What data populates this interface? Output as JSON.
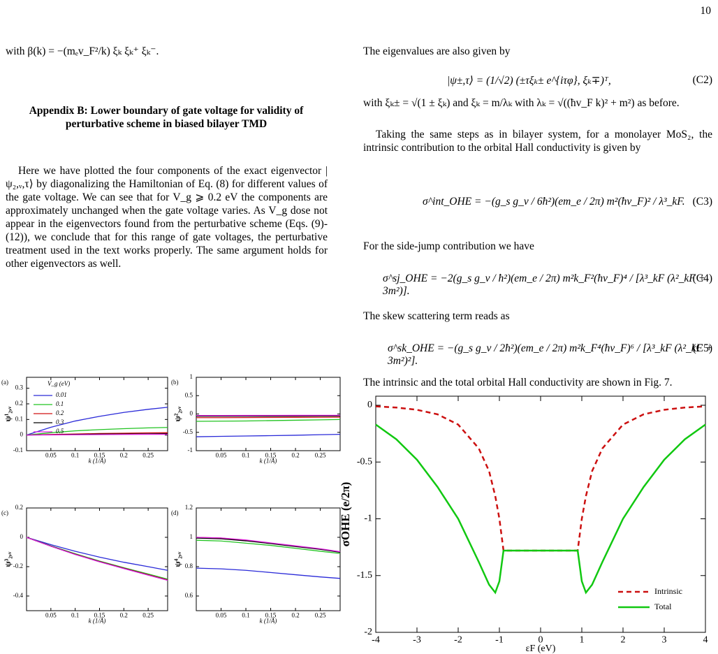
{
  "page_number": "10",
  "left_column": {
    "intro_line": "with β(k) = −(mₑv_F²/k) ξₖ ξₖ⁺ ξₖ⁻.",
    "heading": "Appendix B: Lower boundary of gate voltage for validity of perturbative scheme in biased bilayer TMD",
    "paragraph": "Here we have plotted the four components of the exact eigenvector |ψ₂,ᵥ,τ⟩ by diagonalizing the Hamiltonian of Eq. (8) for different values of the gate voltage. We can see that for V_g ⩾ 0.2 eV the components are approximately unchanged when the gate voltage varies. As V_g dose not appear in the eigenvectors found from the perturbative scheme (Eqs. (9)-(12)), we conclude that for this range of gate voltages, the perturbative treatment used in the text works properly. The same argument holds for other eigenvectors as well."
  },
  "right_column": {
    "line_1": "The eigenvalues are also given by",
    "eq_c2": "|ψ±,τ⟩ = (1/√2) (±τξₖ± e^{iτφ}, ξₖ∓)ᵀ,",
    "eq_c2_label": "(C2)",
    "line_2": "with ξₖ± = √(1 ± ξₖ) and ξₖ = m/λₖ with λₖ = √((ħv_F k)² + m²) as before.",
    "paragraph": "Taking the same steps as in bilayer system, for a monolayer MoS₂, the intrinsic contribution to the orbital Hall conductivity is given by",
    "eq_c3": "σ^int_OHE = −(g_s g_v / 6ħ²)(em_e / 2π) m²(ħv_F)² / λ³_kF.",
    "eq_c3_label": "(C3)",
    "line_3": "For the side-jump contribution we have",
    "eq_c4": "σ^sj_OHE = −2(g_s g_v / ħ²)(em_e / 2π) m²k_F²(ħv_F)⁴ / [λ³_kF (λ²_kF + 3m²)].",
    "eq_c4_label": "(C4)",
    "line_4": "The skew scattering term reads as",
    "eq_c5": "σ^sk_OHE = −(g_s g_v / 2ħ²)(em_e / 2π) m²k_F⁴(ħv_F)⁶ / [λ³_kF (λ²_kF + 3m²)²].",
    "eq_c5_label": "(C5)",
    "line_5": "The intrinsic and the total orbital Hall conductivity are shown in Fig. 7."
  },
  "chart_data": [
    {
      "type": "line",
      "panel_label": "(a)",
      "ylabel": "ψ¹₂,ᵥ",
      "xlabel": "k (1/Å)",
      "legend_title": "V_g (eV)",
      "legend": "upper left",
      "x": [
        0,
        0.05,
        0.1,
        0.15,
        0.2,
        0.25,
        0.29
      ],
      "xlim": [
        0,
        0.29
      ],
      "ylim": [
        -0.1,
        0.37
      ],
      "xticks": [
        0.05,
        0.1,
        0.15,
        0.2,
        0.25
      ],
      "yticks": [
        -0.1,
        0,
        0.1,
        0.2,
        0.3
      ],
      "series": [
        {
          "name": "0.01",
          "color": "#2a2ad8",
          "values": [
            0,
            0.05,
            0.09,
            0.12,
            0.145,
            0.165,
            0.178
          ]
        },
        {
          "name": "0.1",
          "color": "#22c322",
          "values": [
            0,
            0.015,
            0.027,
            0.035,
            0.041,
            0.046,
            0.049
          ]
        },
        {
          "name": "0.2",
          "color": "#d01010",
          "values": [
            0,
            0.004,
            0.007,
            0.01,
            0.012,
            0.014,
            0.015
          ]
        },
        {
          "name": "0.3",
          "color": "#000000",
          "values": [
            0,
            0.002,
            0.004,
            0.006,
            0.007,
            0.008,
            0.009
          ]
        },
        {
          "name": "0.5",
          "color": "#e020e0",
          "values": [
            0,
            0.001,
            0.002,
            0.003,
            0.004,
            0.005,
            0.005
          ]
        }
      ]
    },
    {
      "type": "line",
      "panel_label": "(b)",
      "ylabel": "ψ²₂,ᵥ",
      "xlabel": "k (1/Å)",
      "x": [
        0,
        0.05,
        0.1,
        0.15,
        0.2,
        0.25,
        0.29
      ],
      "xlim": [
        0,
        0.29
      ],
      "ylim": [
        -1,
        1
      ],
      "xticks": [
        0.05,
        0.1,
        0.15,
        0.2,
        0.25
      ],
      "yticks": [
        -1,
        -0.5,
        0,
        0.5,
        1
      ],
      "series": [
        {
          "color": "#2a2ad8",
          "values": [
            -0.62,
            -0.61,
            -0.6,
            -0.59,
            -0.58,
            -0.565,
            -0.555
          ]
        },
        {
          "color": "#22c322",
          "values": [
            -0.2,
            -0.195,
            -0.19,
            -0.18,
            -0.17,
            -0.16,
            -0.15
          ]
        },
        {
          "color": "#d01010",
          "values": [
            -0.1,
            -0.1,
            -0.098,
            -0.095,
            -0.092,
            -0.09,
            -0.088
          ]
        },
        {
          "color": "#000000",
          "values": [
            -0.06,
            -0.06,
            -0.059,
            -0.058,
            -0.056,
            -0.055,
            -0.054
          ]
        },
        {
          "color": "#e020e0",
          "values": [
            -0.04,
            -0.04,
            -0.039,
            -0.038,
            -0.037,
            -0.036,
            -0.035
          ]
        }
      ]
    },
    {
      "type": "line",
      "panel_label": "(c)",
      "ylabel": "ψ³₂,ᵥ",
      "xlabel": "k (1/Å)",
      "x": [
        0,
        0.05,
        0.1,
        0.15,
        0.2,
        0.25,
        0.29
      ],
      "xlim": [
        0,
        0.29
      ],
      "ylim": [
        -0.5,
        0.2
      ],
      "xticks": [
        0.05,
        0.1,
        0.15,
        0.2,
        0.25
      ],
      "yticks": [
        -0.4,
        -0.2,
        0,
        0.2
      ],
      "series": [
        {
          "color": "#2a2ad8",
          "values": [
            0,
            -0.05,
            -0.095,
            -0.135,
            -0.17,
            -0.2,
            -0.225
          ]
        },
        {
          "color": "#22c322",
          "values": [
            0,
            -0.058,
            -0.112,
            -0.162,
            -0.207,
            -0.25,
            -0.285
          ]
        },
        {
          "color": "#d01010",
          "values": [
            0,
            -0.06,
            -0.115,
            -0.165,
            -0.21,
            -0.255,
            -0.29
          ]
        },
        {
          "color": "#000000",
          "values": [
            0,
            -0.06,
            -0.116,
            -0.166,
            -0.212,
            -0.257,
            -0.292
          ]
        },
        {
          "color": "#e020e0",
          "values": [
            0,
            -0.061,
            -0.117,
            -0.167,
            -0.213,
            -0.258,
            -0.293
          ]
        }
      ]
    },
    {
      "type": "line",
      "panel_label": "(d)",
      "ylabel": "ψ⁴₂,ᵥ",
      "xlabel": "k (1/Å)",
      "x": [
        0,
        0.05,
        0.1,
        0.15,
        0.2,
        0.25,
        0.29
      ],
      "xlim": [
        0,
        0.29
      ],
      "ylim": [
        0.5,
        1.2
      ],
      "xticks": [
        0.05,
        0.1,
        0.15,
        0.2,
        0.25
      ],
      "yticks": [
        0.6,
        0.8,
        1,
        1.2
      ],
      "series": [
        {
          "color": "#2a2ad8",
          "values": [
            0.79,
            0.785,
            0.775,
            0.76,
            0.745,
            0.73,
            0.72
          ]
        },
        {
          "color": "#22c322",
          "values": [
            0.98,
            0.975,
            0.96,
            0.945,
            0.925,
            0.905,
            0.89
          ]
        },
        {
          "color": "#d01010",
          "values": [
            1.0,
            0.995,
            0.98,
            0.96,
            0.94,
            0.92,
            0.9
          ]
        },
        {
          "color": "#000000",
          "values": [
            0.995,
            0.99,
            0.976,
            0.957,
            0.937,
            0.918,
            0.898
          ]
        },
        {
          "color": "#e020e0",
          "values": [
            1.0,
            0.996,
            0.982,
            0.962,
            0.942,
            0.922,
            0.902
          ]
        }
      ]
    },
    {
      "type": "line",
      "ylabel": "σOHE (e/2π)",
      "xlabel": "εF (eV)",
      "legend": "lower right",
      "x": [
        -4,
        -3.5,
        -3,
        -2.5,
        -2,
        -1.5,
        -1.25,
        -1.1,
        -1,
        -0.9,
        0,
        0.9,
        1,
        1.1,
        1.25,
        1.5,
        2,
        2.5,
        3,
        3.5,
        4
      ],
      "xlim": [
        -4,
        4
      ],
      "ylim": [
        -2,
        0.08
      ],
      "xticks": [
        -4,
        -3,
        -2,
        -1,
        0,
        1,
        2,
        3,
        4
      ],
      "yticks": [
        -2,
        -1.5,
        -1,
        -0.5,
        0
      ],
      "series": [
        {
          "name": "Intrinsic",
          "color": "#cc1010",
          "dashed": true,
          "values": [
            -0.01,
            -0.02,
            -0.04,
            -0.08,
            -0.17,
            -0.38,
            -0.58,
            -0.8,
            -1.0,
            -1.28,
            -1.28,
            -1.28,
            -1.0,
            -0.8,
            -0.58,
            -0.38,
            -0.17,
            -0.08,
            -0.04,
            -0.02,
            -0.01
          ]
        },
        {
          "name": "Total",
          "color": "#11c811",
          "values": [
            -0.17,
            -0.3,
            -0.48,
            -0.72,
            -1.0,
            -1.38,
            -1.58,
            -1.65,
            -1.55,
            -1.28,
            -1.28,
            -1.28,
            -1.55,
            -1.65,
            -1.58,
            -1.38,
            -1.0,
            -0.72,
            -0.48,
            -0.3,
            -0.17
          ]
        }
      ]
    }
  ]
}
